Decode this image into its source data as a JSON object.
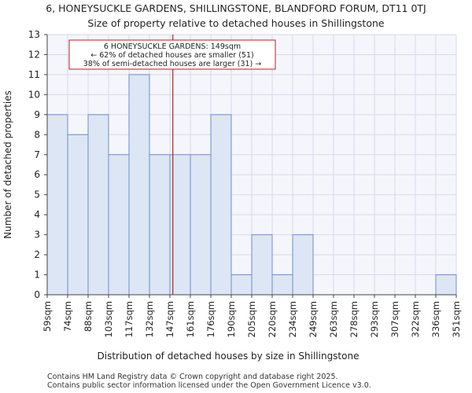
{
  "title_line1": "6, HONEYSUCKLE GARDENS, SHILLINGSTONE, BLANDFORD FORUM, DT11 0TJ",
  "title_line2": "Size of property relative to detached houses in Shillingstone",
  "footer_line1": "Contains HM Land Registry data © Crown copyright and database right 2025.",
  "footer_line2": "Contains public sector information licensed under the Open Government Licence v3.0.",
  "colors": {
    "bar_fill": "#dce6f5",
    "bar_stroke": "#6d8fc7",
    "marker": "#b22222",
    "grid": "#d8d8ec"
  },
  "chart_data": {
    "type": "bar",
    "xlabel": "Distribution of detached houses by size in Shillingstone",
    "ylabel": "Number of detached properties",
    "ylim": [
      0,
      13
    ],
    "yticks": [
      0,
      1,
      2,
      3,
      4,
      5,
      6,
      7,
      8,
      9,
      10,
      11,
      12,
      13
    ],
    "bin_edges": [
      59,
      74,
      88,
      103,
      117,
      132,
      147,
      161,
      176,
      190,
      205,
      220,
      234,
      249,
      263,
      278,
      293,
      307,
      322,
      336,
      351
    ],
    "tick_labels": [
      "59sqm",
      "74sqm",
      "88sqm",
      "103sqm",
      "117sqm",
      "132sqm",
      "147sqm",
      "161sqm",
      "176sqm",
      "190sqm",
      "205sqm",
      "220sqm",
      "234sqm",
      "249sqm",
      "263sqm",
      "278sqm",
      "293sqm",
      "307sqm",
      "322sqm",
      "336sqm",
      "351sqm"
    ],
    "values": [
      9,
      8,
      9,
      7,
      11,
      7,
      7,
      7,
      9,
      1,
      3,
      1,
      3,
      0,
      0,
      0,
      0,
      0,
      0,
      1
    ],
    "grid": true,
    "marker": {
      "x": 149
    },
    "annotation": {
      "lines": [
        "6 HONEYSUCKLE GARDENS: 149sqm",
        "← 62% of detached houses are smaller (51)",
        "38% of semi-detached houses are larger (31) →"
      ]
    }
  }
}
